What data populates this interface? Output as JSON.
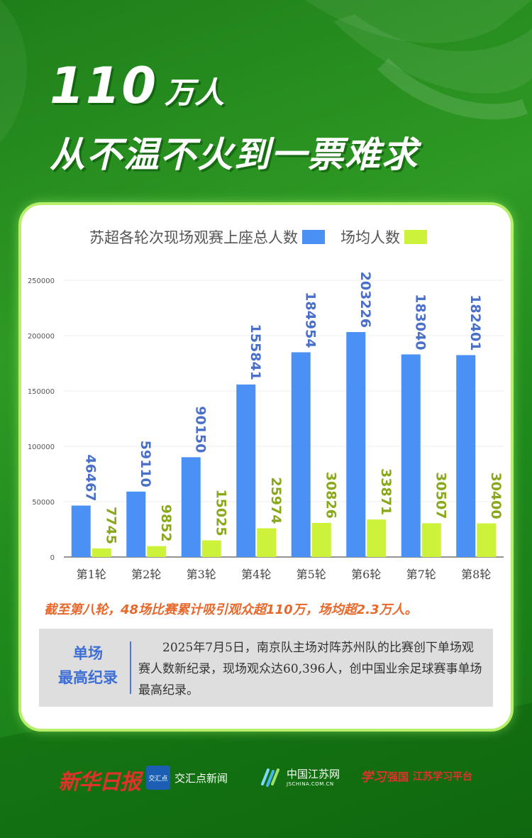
{
  "headline": {
    "number": "110",
    "unit": "万人",
    "subtitle": "从不温不火到一票难求"
  },
  "colors": {
    "total_bar": "#4a90f5",
    "avg_bar": "#cdf23a",
    "total_label": "#4a6fc9",
    "avg_label": "#8aa81c",
    "summary": "#e8682c",
    "record_title": "#3e6fd6"
  },
  "chart_data": {
    "type": "bar",
    "title": "",
    "categories": [
      "第1轮",
      "第2轮",
      "第3轮",
      "第4轮",
      "第5轮",
      "第6轮",
      "第7轮",
      "第8轮"
    ],
    "series": [
      {
        "name": "苏超各轮次现场观赛上座总人数",
        "values": [
          46467,
          59110,
          90150,
          155841,
          184954,
          203226,
          183040,
          182401
        ]
      },
      {
        "name": "场均人数",
        "values": [
          7745,
          9852,
          15025,
          25974,
          30826,
          33871,
          30507,
          30400
        ]
      }
    ],
    "yticks": [
      0,
      50000,
      100000,
      150000,
      200000,
      250000
    ],
    "ylim": [
      0,
      250000
    ],
    "grid": true,
    "legend_position": "top-center"
  },
  "summary": "截至第八轮，48场比赛累计吸引观众超110万，场均超2.3万人。",
  "record": {
    "title_line1": "单场",
    "title_line2": "最高纪录",
    "text": "2025年7月5日，南京队主场对阵苏州队的比赛创下单场观赛人数新纪录，现场观众达60,396人，创中国业余足球赛事单场最高纪录。"
  },
  "logos": {
    "xhrb": "新华日报",
    "jhd_box": "交汇点",
    "jhd": "交汇点新闻",
    "zgjs": "中国江苏网",
    "zgjs_url": "JSCHINA.COM.CN",
    "xxqg_a": "学习",
    "xxqg_b": "强国",
    "xxqg_c": "江苏学习平台"
  }
}
